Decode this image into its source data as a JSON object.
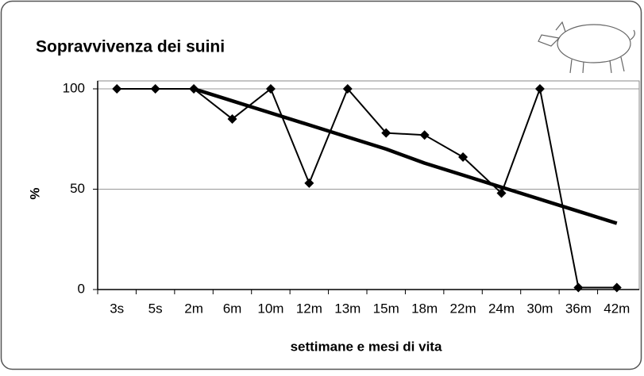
{
  "chart_data": {
    "type": "line",
    "title": "Sopravvivenza dei suini",
    "x_label": "settimane e mesi di vita",
    "y_label": "%",
    "categories": [
      "3s",
      "5s",
      "2m",
      "6m",
      "10m",
      "12m",
      "13m",
      "15m",
      "18m",
      "22m",
      "24m",
      "30m",
      "36m",
      "42m"
    ],
    "series": [
      {
        "color": "#000000",
        "marker": "diamond",
        "values": [
          100,
          100,
          100,
          85,
          100,
          53,
          100,
          78,
          77,
          66,
          48,
          100,
          1,
          1
        ]
      },
      {
        "color": "#000000",
        "marker": "none",
        "values": [
          null,
          null,
          100,
          94,
          88,
          82,
          76,
          70,
          63,
          57,
          51,
          45,
          39,
          33
        ]
      }
    ],
    "ylim": [
      0,
      100
    ],
    "yticks": [
      0,
      50,
      100
    ],
    "grid": true
  }
}
